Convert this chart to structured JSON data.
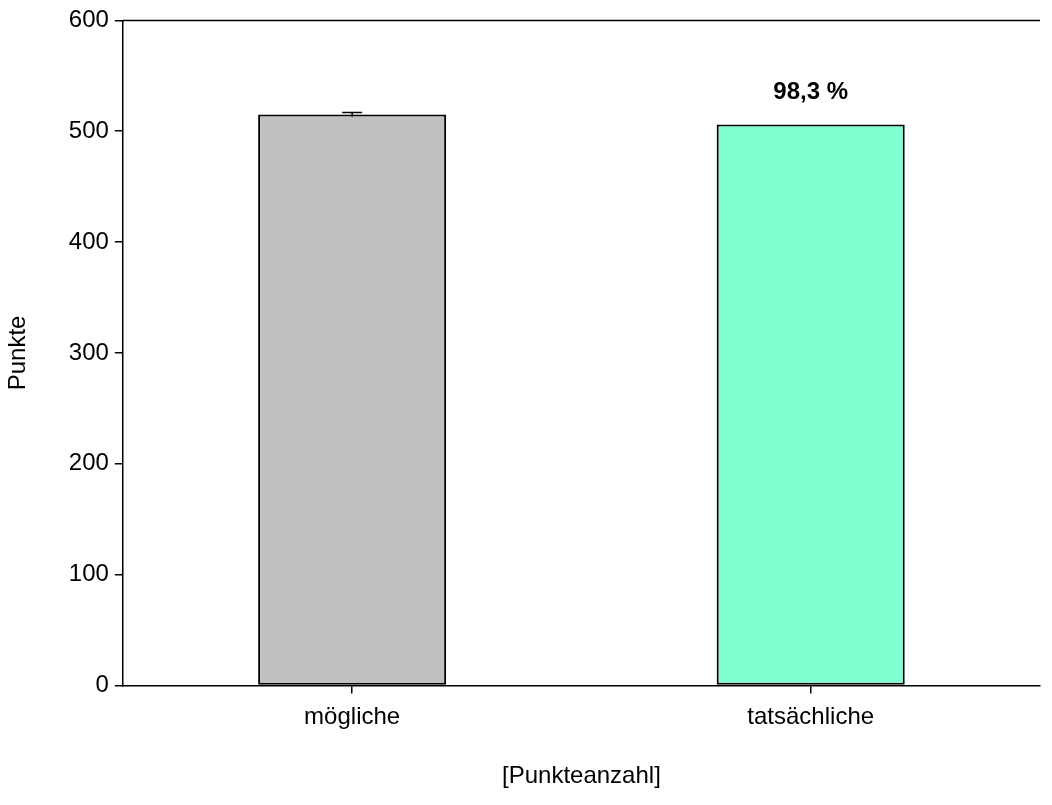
{
  "chart_data": {
    "type": "bar",
    "xlabel": "[Punkteanzahl]",
    "ylabel": "Punkte",
    "categories": [
      "mögliche",
      "tatsächliche"
    ],
    "values": [
      515,
      506
    ],
    "colors": [
      "#c0c0c0",
      "#7fffd0"
    ],
    "errors": [
      2,
      null
    ],
    "annotations": [
      {
        "text": "98,3 %",
        "x": "tatsächliche",
        "y": 506
      }
    ],
    "ylim": [
      0,
      600
    ],
    "yticks": [
      0,
      100,
      200,
      300,
      400,
      500,
      600
    ],
    "grid": false,
    "legend": false
  }
}
